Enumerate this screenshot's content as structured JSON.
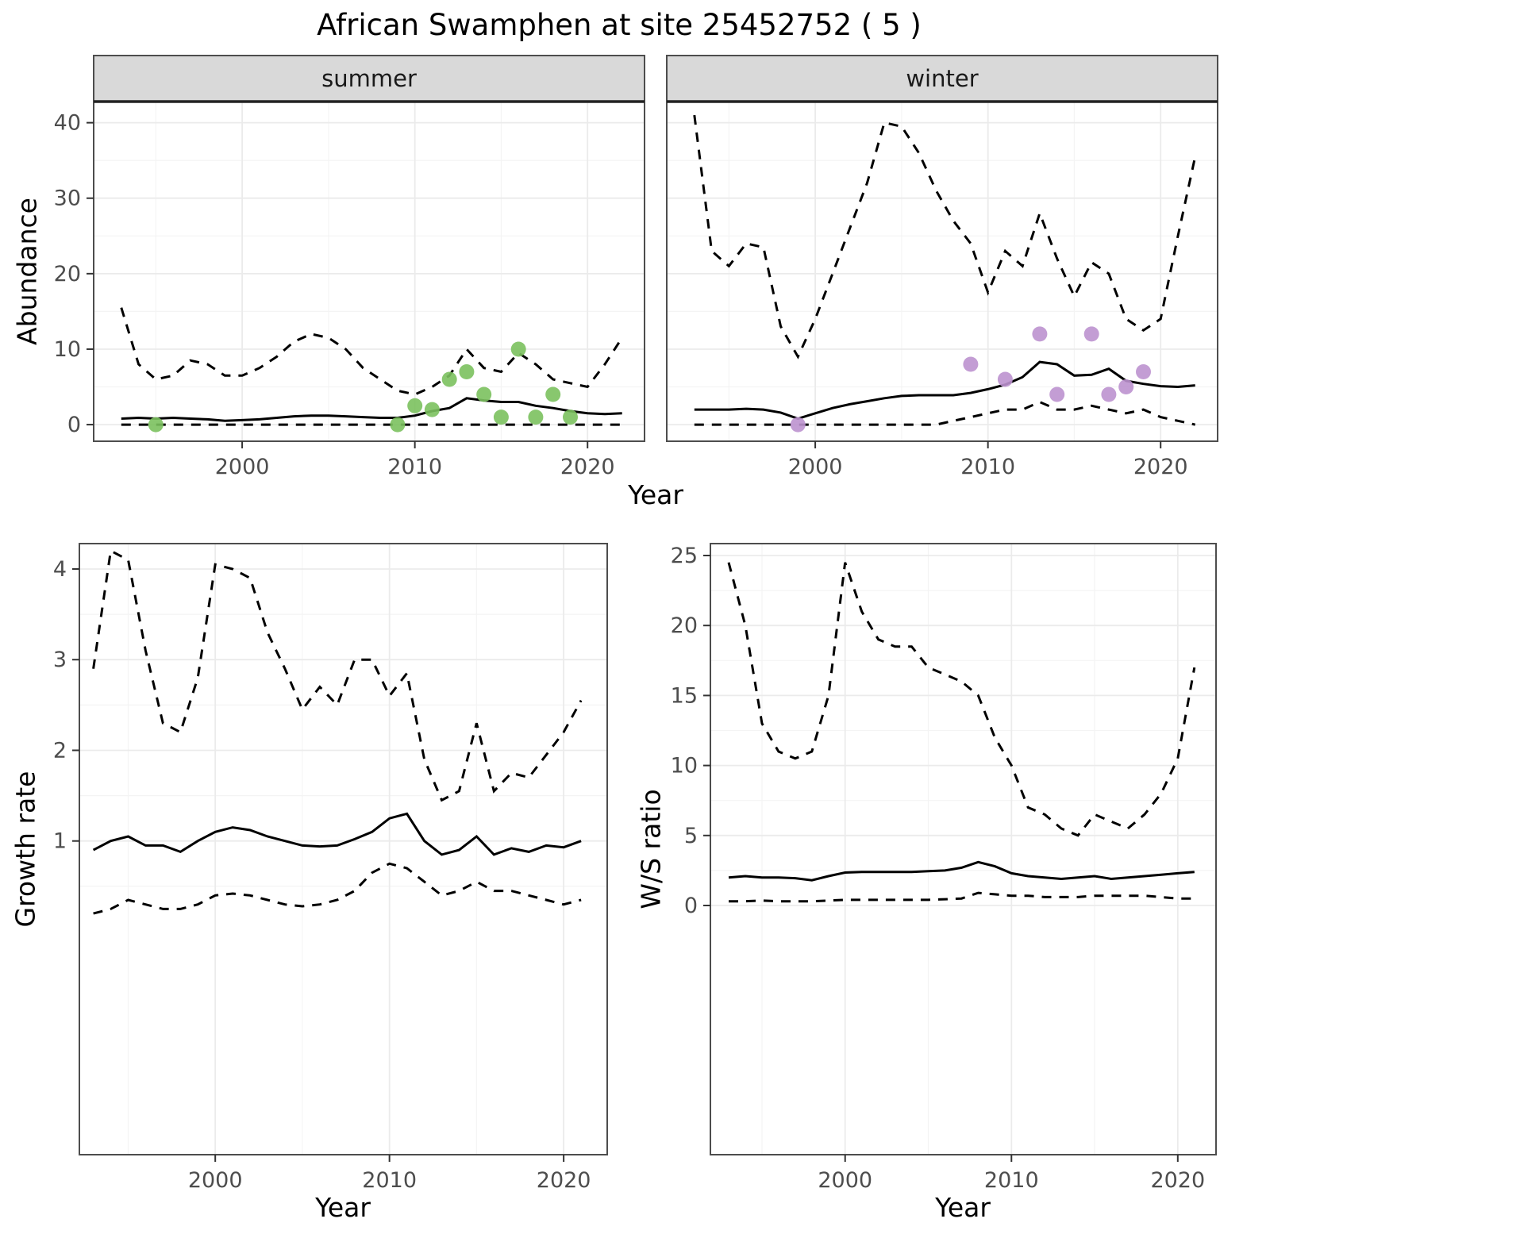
{
  "title": "African Swamphen at site 25452752 ( 5 )",
  "labels": {
    "abundance": "Abundance",
    "growth_rate": "Growth rate",
    "ws_ratio": "W/S ratio",
    "year": "Year"
  },
  "colors": {
    "line": "#000000",
    "summer_points": "#7bc15e",
    "winter_points": "#bc92cf",
    "strip_bg": "#d9d9d9",
    "strip_text": "#1a1a1a",
    "panel_border": "#4d4d4d",
    "strip_junction": "#222222",
    "grid_major": "#ebebeb",
    "grid_minor": "#f4f4f4",
    "tick_label": "#4d4d4d",
    "tick_mark": "#333333"
  },
  "chart_data": [
    {
      "id": "abundance-summer",
      "type": "line",
      "facet_label": "summer",
      "xlabel": "Year",
      "ylabel": "Abundance",
      "xlim": [
        1991.4,
        2023.3
      ],
      "ylim": [
        -2.2,
        42.8
      ],
      "xticks": [
        2000,
        2010,
        2020
      ],
      "xticks_minor": [
        1995,
        2005,
        2015
      ],
      "yticks": [
        0,
        10,
        20,
        30,
        40
      ],
      "yticks_minor": [
        5,
        15,
        25,
        35
      ],
      "x": [
        1993,
        1994,
        1995,
        1996,
        1997,
        1998,
        1999,
        2000,
        2001,
        2002,
        2003,
        2004,
        2005,
        2006,
        2007,
        2008,
        2009,
        2010,
        2011,
        2012,
        2013,
        2014,
        2015,
        2016,
        2017,
        2018,
        2019,
        2020,
        2021,
        2022
      ],
      "series": [
        {
          "name": "median",
          "style": "solid",
          "values": [
            0.8,
            0.9,
            0.8,
            0.9,
            0.8,
            0.7,
            0.5,
            0.6,
            0.7,
            0.9,
            1.1,
            1.2,
            1.2,
            1.1,
            1.0,
            0.9,
            0.9,
            1.2,
            1.8,
            2.2,
            3.5,
            3.2,
            3.0,
            3.0,
            2.5,
            2.2,
            1.8,
            1.5,
            1.4,
            1.5
          ]
        },
        {
          "name": "upper-ci",
          "style": "dashed",
          "values": [
            15.5,
            8,
            6,
            6.5,
            8.5,
            8,
            6.5,
            6.5,
            7.5,
            9,
            11,
            12,
            11.5,
            10,
            7.5,
            6,
            4.5,
            4,
            5,
            6.5,
            10,
            7.5,
            7,
            9.5,
            8,
            6,
            5.5,
            5,
            8,
            11.5
          ]
        },
        {
          "name": "lower-ci",
          "style": "dashed",
          "values": [
            0,
            0,
            0,
            0,
            0,
            0,
            0,
            0,
            0,
            0,
            0,
            0,
            0,
            0,
            0,
            0,
            0,
            0,
            0,
            0,
            0,
            0,
            0,
            0,
            0,
            0,
            0,
            0,
            0,
            0
          ]
        }
      ],
      "points": {
        "name": "observed-counts",
        "color_key": "summer_points",
        "x": [
          1995,
          2009,
          2010,
          2011,
          2012,
          2013,
          2014,
          2015,
          2016,
          2017,
          2018,
          2019
        ],
        "y": [
          0,
          0,
          2.5,
          2,
          6,
          7,
          4,
          1,
          10,
          1,
          4,
          1
        ]
      }
    },
    {
      "id": "abundance-winter",
      "type": "line",
      "facet_label": "winter",
      "xlabel": "Year",
      "ylabel": "Abundance",
      "xlim": [
        1991.4,
        2023.3
      ],
      "ylim": [
        -2.2,
        42.8
      ],
      "xticks": [
        2000,
        2010,
        2020
      ],
      "xticks_minor": [
        1995,
        2005,
        2015
      ],
      "yticks": [
        0,
        10,
        20,
        30,
        40
      ],
      "yticks_minor": [
        5,
        15,
        25,
        35
      ],
      "x": [
        1993,
        1994,
        1995,
        1996,
        1997,
        1998,
        1999,
        2000,
        2001,
        2002,
        2003,
        2004,
        2005,
        2006,
        2007,
        2008,
        2009,
        2010,
        2011,
        2012,
        2013,
        2014,
        2015,
        2016,
        2017,
        2018,
        2019,
        2020,
        2021,
        2022
      ],
      "series": [
        {
          "name": "median",
          "style": "solid",
          "values": [
            2.0,
            2.0,
            2.0,
            2.1,
            2.0,
            1.6,
            0.8,
            1.5,
            2.2,
            2.7,
            3.1,
            3.5,
            3.8,
            3.9,
            3.9,
            3.9,
            4.2,
            4.7,
            5.3,
            6.3,
            8.3,
            8.0,
            6.5,
            6.6,
            7.4,
            5.8,
            5.4,
            5.1,
            5.0,
            5.2
          ]
        },
        {
          "name": "upper-ci",
          "style": "dashed",
          "values": [
            41,
            23,
            21,
            24,
            23.5,
            13,
            9,
            14,
            20,
            26,
            32,
            40,
            39.5,
            36,
            31,
            27,
            24,
            17.5,
            23,
            21,
            28,
            22,
            17,
            21.5,
            20,
            14,
            12.5,
            14,
            25,
            35.5
          ]
        },
        {
          "name": "lower-ci",
          "style": "dashed",
          "values": [
            0,
            0,
            0,
            0,
            0,
            0,
            0,
            0,
            0,
            0,
            0,
            0,
            0,
            0,
            0,
            0.5,
            1,
            1.5,
            2,
            2,
            3,
            2,
            2,
            2.5,
            2,
            1.5,
            2,
            1,
            0.5,
            0
          ]
        }
      ],
      "points": {
        "name": "observed-counts",
        "color_key": "winter_points",
        "x": [
          1999,
          2009,
          2011,
          2013,
          2014,
          2016,
          2017,
          2018,
          2019
        ],
        "y": [
          0,
          8,
          6,
          12,
          4,
          12,
          4,
          5,
          7
        ]
      }
    },
    {
      "id": "growth-rate",
      "type": "line",
      "xlabel": "Year",
      "ylabel": "Growth rate",
      "xlim": [
        1992.2,
        2022.5
      ],
      "ylim": [
        -2.46,
        4.28
      ],
      "xticks": [
        2000,
        2010,
        2020
      ],
      "xticks_minor": [
        1995,
        2005,
        2015
      ],
      "yticks": [
        1,
        2,
        3,
        4
      ],
      "yticks_minor": [
        0.5,
        1.5,
        2.5,
        3.5
      ],
      "x": [
        1993,
        1994,
        1995,
        1996,
        1997,
        1998,
        1999,
        2000,
        2001,
        2002,
        2003,
        2004,
        2005,
        2006,
        2007,
        2008,
        2009,
        2010,
        2011,
        2012,
        2013,
        2014,
        2015,
        2016,
        2017,
        2018,
        2019,
        2020,
        2021
      ],
      "series": [
        {
          "name": "median",
          "style": "solid",
          "values": [
            0.9,
            1.0,
            1.05,
            0.95,
            0.95,
            0.88,
            1.0,
            1.1,
            1.15,
            1.12,
            1.05,
            1.0,
            0.95,
            0.94,
            0.95,
            1.02,
            1.1,
            1.25,
            1.3,
            1.0,
            0.85,
            0.9,
            1.05,
            0.85,
            0.92,
            0.88,
            0.95,
            0.93,
            1.0
          ]
        },
        {
          "name": "upper-ci",
          "style": "dashed",
          "values": [
            2.9,
            4.2,
            4.1,
            3.1,
            2.3,
            2.2,
            2.8,
            4.05,
            4.0,
            3.9,
            3.3,
            2.9,
            2.45,
            2.7,
            2.5,
            3.0,
            3.0,
            2.6,
            2.85,
            1.9,
            1.45,
            1.55,
            2.3,
            1.55,
            1.75,
            1.7,
            1.95,
            2.2,
            2.55
          ]
        },
        {
          "name": "lower-ci",
          "style": "dashed",
          "values": [
            0.2,
            0.25,
            0.35,
            0.3,
            0.25,
            0.25,
            0.3,
            0.4,
            0.42,
            0.4,
            0.35,
            0.3,
            0.28,
            0.3,
            0.35,
            0.45,
            0.65,
            0.75,
            0.7,
            0.55,
            0.4,
            0.45,
            0.55,
            0.45,
            0.45,
            0.4,
            0.35,
            0.3,
            0.35
          ]
        }
      ]
    },
    {
      "id": "ws-ratio",
      "type": "line",
      "xlabel": "Year",
      "ylabel": "W/S ratio",
      "xlim": [
        1991.9,
        2022.3
      ],
      "ylim": [
        -17.8,
        25.85
      ],
      "xticks": [
        2000,
        2010,
        2020
      ],
      "xticks_minor": [
        1995,
        2005,
        2015
      ],
      "yticks": [
        0,
        5,
        10,
        15,
        20,
        25
      ],
      "yticks_minor": [
        2.5,
        7.5,
        12.5,
        17.5,
        22.5
      ],
      "x": [
        1993,
        1994,
        1995,
        1996,
        1997,
        1998,
        1999,
        2000,
        2001,
        2002,
        2003,
        2004,
        2005,
        2006,
        2007,
        2008,
        2009,
        2010,
        2011,
        2012,
        2013,
        2014,
        2015,
        2016,
        2017,
        2018,
        2019,
        2020,
        2021
      ],
      "series": [
        {
          "name": "median",
          "style": "solid",
          "values": [
            2.0,
            2.1,
            2.0,
            2.0,
            1.95,
            1.8,
            2.1,
            2.35,
            2.4,
            2.4,
            2.4,
            2.4,
            2.45,
            2.5,
            2.7,
            3.1,
            2.8,
            2.3,
            2.1,
            2.0,
            1.9,
            2.0,
            2.1,
            1.9,
            2.0,
            2.1,
            2.2,
            2.3,
            2.4
          ]
        },
        {
          "name": "upper-ci",
          "style": "dashed",
          "values": [
            24.5,
            20,
            13,
            11,
            10.5,
            11,
            15,
            24.5,
            21,
            19,
            18.5,
            18.5,
            17,
            16.5,
            16,
            15,
            12,
            10,
            7,
            6.5,
            5.5,
            5,
            6.5,
            6,
            5.5,
            6.5,
            8,
            10.5,
            17
          ]
        },
        {
          "name": "lower-ci",
          "style": "dashed",
          "values": [
            0.3,
            0.3,
            0.35,
            0.3,
            0.3,
            0.3,
            0.35,
            0.4,
            0.4,
            0.4,
            0.4,
            0.4,
            0.4,
            0.45,
            0.5,
            0.9,
            0.8,
            0.7,
            0.7,
            0.6,
            0.6,
            0.6,
            0.7,
            0.7,
            0.7,
            0.7,
            0.6,
            0.5,
            0.5
          ]
        }
      ]
    }
  ]
}
